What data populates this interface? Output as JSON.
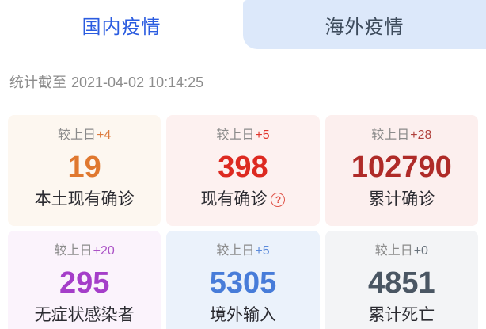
{
  "tabs": [
    {
      "label": "国内疫情",
      "active": true
    },
    {
      "label": "海外疫情",
      "active": false
    }
  ],
  "theme": {
    "active_tab_text": "#2B5CE0",
    "inactive_tab_bg": "#DCE8FA",
    "inactive_tab_text": "#3D4B5C",
    "timestamp_text": "#8C8C8C",
    "label_text": "#2B2B31",
    "delta_label_text": "#8B8B8B",
    "help_icon_color": "#E05348"
  },
  "timestamp": {
    "prefix": "统计截至",
    "datetime": "2021-04-02 10:14:25"
  },
  "cards": [
    {
      "delta_label": "较上日",
      "delta": "+4",
      "value": "19",
      "label": "本土现有确诊",
      "has_help": false,
      "bg": "#FDF7F0",
      "value_color": "#E0782F",
      "delta_color": "#DD7A3C"
    },
    {
      "delta_label": "较上日",
      "delta": "+5",
      "value": "398",
      "label": "现有确诊",
      "has_help": true,
      "bg": "#FDF1F0",
      "value_color": "#DD2A21",
      "delta_color": "#E0352C"
    },
    {
      "delta_label": "较上日",
      "delta": "+28",
      "value": "102790",
      "label": "累计确诊",
      "has_help": false,
      "bg": "#FCEFEE",
      "value_color": "#AF2B28",
      "delta_color": "#B0403B"
    },
    {
      "delta_label": "较上日",
      "delta": "+20",
      "value": "295",
      "label": "无症状感染者",
      "has_help": false,
      "bg": "#FBF3FC",
      "value_color": "#A53EC9",
      "delta_color": "#AB52C6"
    },
    {
      "delta_label": "较上日",
      "delta": "+5",
      "value": "5305",
      "label": "境外输入",
      "has_help": false,
      "bg": "#EBF2FB",
      "value_color": "#477CD9",
      "delta_color": "#5C8BDB"
    },
    {
      "delta_label": "较上日",
      "delta": "+0",
      "value": "4851",
      "label": "累计死亡",
      "has_help": false,
      "bg": "#F3F4F6",
      "value_color": "#4A5663",
      "delta_color": "#68727C"
    }
  ],
  "help_icon_glyph": "?"
}
